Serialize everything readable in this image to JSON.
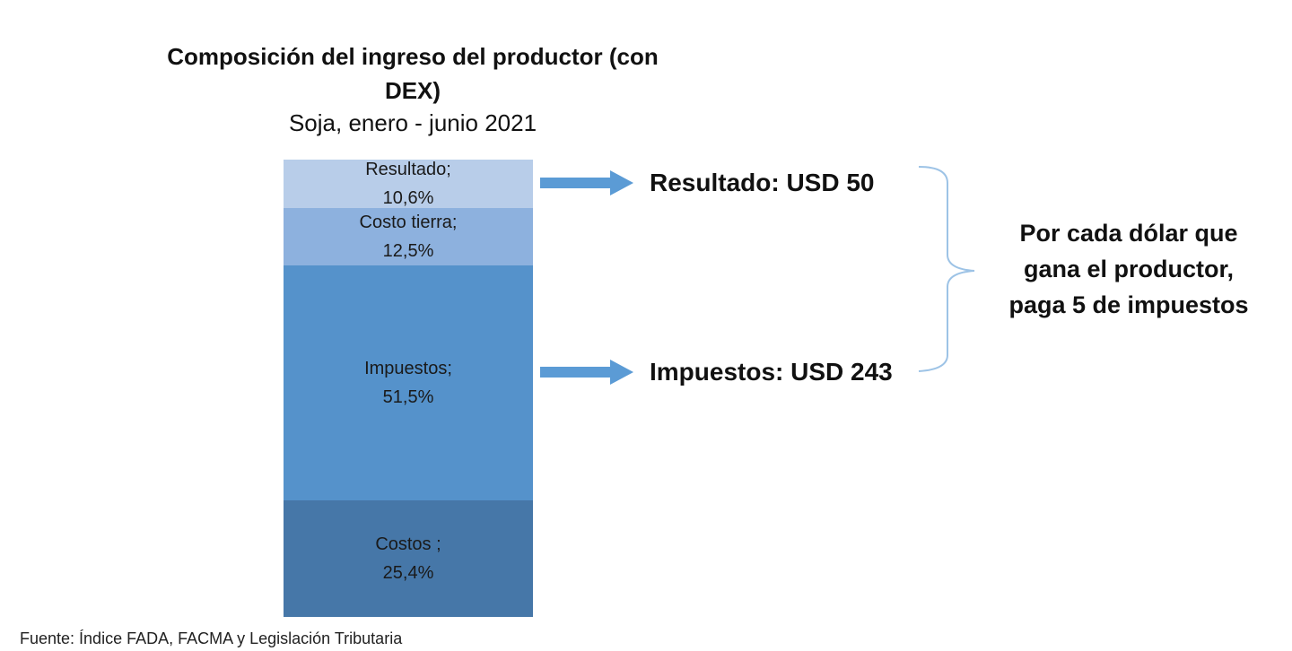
{
  "chart_data": {
    "type": "bar",
    "stacked": true,
    "title": "Composición del ingreso del productor (con DEX)",
    "title_lines": [
      "Composición del ingreso del productor (con",
      "DEX)"
    ],
    "subtitle": "Soja, enero - junio 2021",
    "unit": "%",
    "segments": [
      {
        "name": "Costos",
        "value": 25.4,
        "label_line1": "Costos ;",
        "label_line2": "25,4%",
        "color": "#4677a8"
      },
      {
        "name": "Impuestos",
        "value": 51.5,
        "label_line1": "Impuestos;",
        "label_line2": "51,5%",
        "color": "#5592cb"
      },
      {
        "name": "Costo tierra",
        "value": 12.5,
        "label_line1": "Costo tierra;",
        "label_line2": "12,5%",
        "color": "#8db1de"
      },
      {
        "name": "Resultado",
        "value": 10.6,
        "label_line1": "Resultado;",
        "label_line2": "10,6%",
        "color": "#b8cde9"
      }
    ],
    "annotations": {
      "resultado": "Resultado: USD 50",
      "impuestos": "Impuestos: USD 243"
    },
    "message_lines": [
      "Por cada dólar que",
      "gana el productor,",
      "paga 5 de impuestos"
    ],
    "source": "Fuente: Índice FADA, FACMA y Legislación Tributaria"
  },
  "colors": {
    "arrow": "#5b9bd5",
    "brace": "#9dc3e6"
  }
}
